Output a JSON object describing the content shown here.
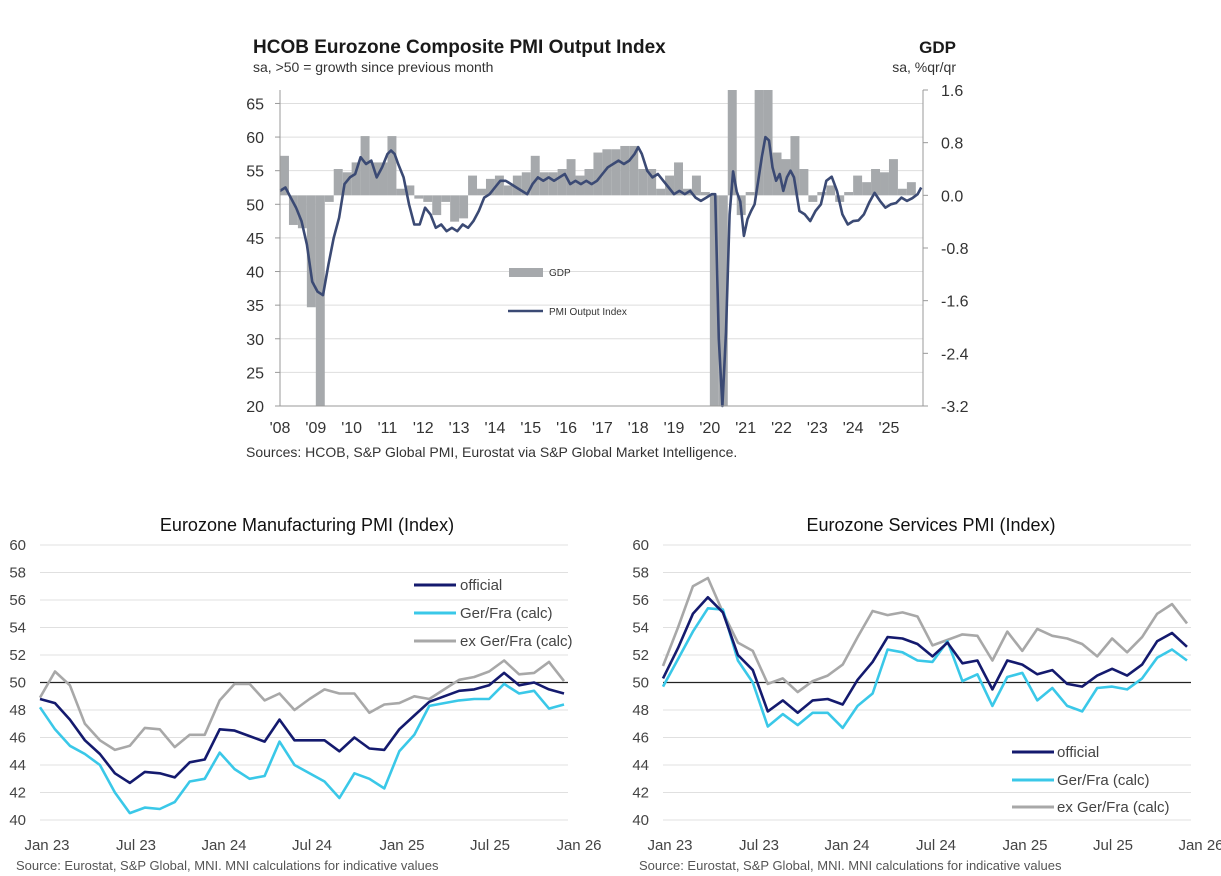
{
  "chart_data": [
    {
      "type": "bar+line",
      "title": "HCOB Eurozone Composite PMI Output Index",
      "subtitle": "sa, >50 = growth since previous month",
      "right_title": "GDP",
      "right_subtitle": "sa, %qr/qr",
      "source": "Sources: HCOB, S&P Global PMI, Eurostat via S&P Global Market Intelligence.",
      "legend": [
        "GDP",
        "PMI Output Index"
      ],
      "colors": {
        "gdp": "#a6a9ac",
        "pmi": "#3b4a74"
      },
      "x_ticks": [
        "'08",
        "'09",
        "'10",
        "'11",
        "'12",
        "'13",
        "'14",
        "'15",
        "'16",
        "'17",
        "'18",
        "'19",
        "'20",
        "'21",
        "'22",
        "'23",
        "'24",
        "'25"
      ],
      "left_axis": {
        "ticks": [
          65,
          60,
          55,
          50,
          45,
          40,
          35,
          30,
          25,
          20
        ],
        "ylim": [
          20,
          67
        ]
      },
      "right_axis": {
        "ticks": [
          "1.6",
          "0.8",
          "0.0",
          "-0.8",
          "-1.6",
          "-2.4",
          "-3.2"
        ],
        "ylim": [
          -3.2,
          1.6
        ]
      },
      "xlim": [
        2008,
        2025.95
      ],
      "gdp": {
        "x": [
          2008.125,
          2008.375,
          2008.625,
          2008.875,
          2009.125,
          2009.375,
          2009.625,
          2009.875,
          2010.125,
          2010.375,
          2010.625,
          2010.875,
          2011.125,
          2011.375,
          2011.625,
          2011.875,
          2012.125,
          2012.375,
          2012.625,
          2012.875,
          2013.125,
          2013.375,
          2013.625,
          2013.875,
          2014.125,
          2014.375,
          2014.625,
          2014.875,
          2015.125,
          2015.375,
          2015.625,
          2015.875,
          2016.125,
          2016.375,
          2016.625,
          2016.875,
          2017.125,
          2017.375,
          2017.625,
          2017.875,
          2018.125,
          2018.375,
          2018.625,
          2018.875,
          2019.125,
          2019.375,
          2019.625,
          2019.875,
          2020.125,
          2020.375,
          2020.625,
          2020.875,
          2021.125,
          2021.375,
          2021.625,
          2021.875,
          2022.125,
          2022.375,
          2022.625,
          2022.875,
          2023.125,
          2023.375,
          2023.625,
          2023.875,
          2024.125,
          2024.375,
          2024.625,
          2024.875,
          2025.125,
          2025.375,
          2025.625
        ],
        "values": [
          0.6,
          -0.45,
          -0.5,
          -1.7,
          -3.2,
          -0.1,
          0.4,
          0.35,
          0.5,
          0.9,
          0.5,
          0.5,
          0.9,
          0.1,
          0.15,
          -0.05,
          -0.1,
          -0.3,
          -0.1,
          -0.4,
          -0.35,
          0.3,
          0.1,
          0.25,
          0.3,
          0.15,
          0.3,
          0.35,
          0.6,
          0.35,
          0.35,
          0.4,
          0.55,
          0.3,
          0.4,
          0.65,
          0.7,
          0.7,
          0.75,
          0.75,
          0.4,
          0.4,
          0.1,
          0.3,
          0.5,
          0.1,
          0.3,
          0.05,
          -3.4,
          -11.7,
          12.5,
          -0.3,
          0.05,
          2.3,
          2.4,
          0.65,
          0.55,
          0.9,
          0.4,
          -0.1,
          0.05,
          0.15,
          -0.1,
          0.05,
          0.3,
          0.2,
          0.4,
          0.35,
          0.55,
          0.1,
          0.2
        ]
      },
      "pmi": {
        "x": [
          2008.0,
          2008.15,
          2008.3,
          2008.45,
          2008.6,
          2008.75,
          2008.9,
          2009.05,
          2009.2,
          2009.35,
          2009.5,
          2009.65,
          2009.8,
          2009.95,
          2010.1,
          2010.25,
          2010.4,
          2010.55,
          2010.7,
          2010.85,
          2011.0,
          2011.1,
          2011.2,
          2011.3,
          2011.45,
          2011.6,
          2011.75,
          2011.9,
          2012.05,
          2012.2,
          2012.35,
          2012.5,
          2012.65,
          2012.8,
          2012.95,
          2013.1,
          2013.25,
          2013.4,
          2013.55,
          2013.7,
          2013.85,
          2014.0,
          2014.15,
          2014.3,
          2014.45,
          2014.6,
          2014.75,
          2014.9,
          2015.05,
          2015.2,
          2015.35,
          2015.5,
          2015.65,
          2015.8,
          2015.95,
          2016.1,
          2016.25,
          2016.4,
          2016.55,
          2016.7,
          2016.85,
          2017.0,
          2017.15,
          2017.3,
          2017.45,
          2017.6,
          2017.75,
          2017.9,
          2018.0,
          2018.1,
          2018.25,
          2018.4,
          2018.55,
          2018.7,
          2018.85,
          2019.0,
          2019.15,
          2019.3,
          2019.45,
          2019.6,
          2019.75,
          2019.9,
          2020.05,
          2020.15,
          2020.25,
          2020.35,
          2020.45,
          2020.55,
          2020.65,
          2020.75,
          2020.85,
          2020.95,
          2021.05,
          2021.15,
          2021.25,
          2021.35,
          2021.45,
          2021.55,
          2021.65,
          2021.75,
          2021.85,
          2021.95,
          2022.05,
          2022.15,
          2022.25,
          2022.35,
          2022.5,
          2022.65,
          2022.8,
          2022.95,
          2023.1,
          2023.25,
          2023.4,
          2023.55,
          2023.7,
          2023.85,
          2024.0,
          2024.15,
          2024.3,
          2024.45,
          2024.6,
          2024.75,
          2024.9,
          2025.05,
          2025.2,
          2025.35,
          2025.5,
          2025.65,
          2025.8,
          2025.9
        ],
        "values": [
          52.0,
          52.5,
          51.0,
          49.5,
          47.5,
          44.0,
          38.5,
          37.0,
          36.5,
          41.0,
          45.0,
          48.0,
          53.0,
          54.0,
          54.5,
          57.0,
          56.0,
          56.5,
          54.0,
          55.5,
          57.5,
          58.0,
          57.5,
          56.0,
          54.0,
          50.0,
          47.0,
          47.0,
          49.5,
          48.5,
          46.5,
          47.0,
          46.0,
          46.5,
          46.0,
          47.0,
          46.5,
          47.5,
          49.0,
          51.0,
          51.5,
          52.5,
          53.5,
          53.5,
          53.0,
          52.5,
          52.0,
          51.5,
          53.0,
          54.0,
          53.5,
          54.0,
          53.5,
          54.0,
          54.5,
          53.0,
          53.5,
          53.0,
          53.5,
          53.0,
          53.5,
          54.5,
          55.5,
          56.0,
          56.5,
          56.0,
          56.5,
          57.5,
          58.5,
          57.5,
          55.0,
          54.0,
          54.5,
          53.5,
          52.5,
          51.5,
          52.0,
          51.5,
          52.0,
          51.0,
          50.5,
          51.0,
          51.5,
          51.5,
          30.0,
          13.6,
          31.0,
          48.5,
          54.9,
          51.9,
          50.4,
          45.3,
          47.8,
          49.0,
          50.0,
          53.5,
          57.0,
          60.0,
          59.5,
          55.5,
          53.5,
          54.5,
          52.0,
          54.0,
          55.0,
          54.0,
          49.0,
          48.5,
          47.5,
          49.0,
          50.0,
          53.5,
          54.1,
          52.0,
          48.5,
          47.0,
          47.5,
          47.6,
          48.5,
          50.3,
          51.7,
          50.5,
          49.5,
          50.0,
          50.2,
          51.0,
          50.5,
          50.9,
          51.5,
          52.5
        ]
      }
    },
    {
      "type": "line",
      "title": "Eurozone Manufacturing PMI (Index)",
      "source": "Source: Eurostat, S&P Global, MNI.  MNI calculations for indicative values",
      "x_ticks": [
        "Jan 23",
        "Jul 23",
        "Jan 24",
        "Jul 24",
        "Jan 25",
        "Jul 25",
        "Jan 26"
      ],
      "y_ticks": [
        60,
        58,
        56,
        54,
        52,
        50,
        48,
        46,
        44,
        42,
        40
      ],
      "ylim": [
        40,
        60
      ],
      "reference_line": 50,
      "series": [
        {
          "name": "official",
          "color": "#141a6e",
          "values": [
            48.8,
            48.5,
            47.3,
            45.8,
            44.8,
            43.4,
            42.7,
            43.5,
            43.4,
            43.1,
            44.2,
            44.4,
            46.6,
            46.5,
            46.1,
            45.7,
            47.3,
            45.8,
            45.8,
            45.8,
            45.0,
            46.0,
            45.2,
            45.1,
            46.6,
            47.6,
            48.6,
            49.0,
            49.4,
            49.5,
            49.8,
            50.7,
            49.8,
            50.0,
            49.5,
            49.2
          ]
        },
        {
          "name": "Ger/Fra (calc)",
          "color": "#3ac8e8",
          "values": [
            48.2,
            46.6,
            45.4,
            44.8,
            44.0,
            42.0,
            40.5,
            40.9,
            40.8,
            41.3,
            42.8,
            43.0,
            44.9,
            43.7,
            43.0,
            43.2,
            45.7,
            44.0,
            43.4,
            42.8,
            41.6,
            43.4,
            43.0,
            42.3,
            45.0,
            46.2,
            48.3,
            48.5,
            48.7,
            48.8,
            48.8,
            49.9,
            49.2,
            49.4,
            48.1,
            48.4
          ]
        },
        {
          "name": "ex Ger/Fra (calc)",
          "color": "#a8a8a8",
          "values": [
            48.9,
            50.8,
            49.8,
            47.0,
            45.8,
            45.1,
            45.4,
            46.7,
            46.6,
            45.3,
            46.2,
            46.2,
            48.7,
            49.9,
            49.9,
            48.7,
            49.2,
            48.0,
            48.8,
            49.5,
            49.2,
            49.2,
            47.8,
            48.4,
            48.5,
            49.0,
            48.8,
            49.5,
            50.2,
            50.4,
            50.8,
            51.6,
            50.6,
            50.7,
            51.5,
            50.1
          ]
        }
      ]
    },
    {
      "type": "line",
      "title": "Eurozone Services PMI (Index)",
      "source": "Source: Eurostat, S&P Global, MNI.  MNI calculations for indicative values",
      "x_ticks": [
        "Jan 23",
        "Jul 23",
        "Jan 24",
        "Jul 24",
        "Jan 25",
        "Jul 25",
        "Jan 26"
      ],
      "y_ticks": [
        60,
        58,
        56,
        54,
        52,
        50,
        48,
        46,
        44,
        42,
        40
      ],
      "ylim": [
        40,
        60
      ],
      "reference_line": 50,
      "series": [
        {
          "name": "official",
          "color": "#141a6e",
          "values": [
            50.3,
            52.5,
            55.0,
            56.2,
            55.1,
            52.0,
            50.9,
            47.9,
            48.7,
            47.8,
            48.7,
            48.8,
            48.4,
            50.2,
            51.5,
            53.3,
            53.2,
            52.8,
            51.9,
            52.9,
            51.4,
            51.6,
            49.5,
            51.6,
            51.3,
            50.6,
            50.9,
            49.9,
            49.7,
            50.5,
            51.0,
            50.5,
            51.3,
            53.0,
            53.6,
            52.6
          ]
        },
        {
          "name": "Ger/Fra (calc)",
          "color": "#3ac8e8",
          "values": [
            49.7,
            51.7,
            53.7,
            55.4,
            55.3,
            51.6,
            50.0,
            46.8,
            47.7,
            46.9,
            47.8,
            47.8,
            46.7,
            48.3,
            49.2,
            52.4,
            52.2,
            51.6,
            51.5,
            53.0,
            50.1,
            50.6,
            48.3,
            50.4,
            50.7,
            48.7,
            49.6,
            48.3,
            47.9,
            49.6,
            49.7,
            49.5,
            50.3,
            51.8,
            52.4,
            51.6
          ]
        },
        {
          "name": "ex Ger/Fra (calc)",
          "color": "#a8a8a8",
          "values": [
            51.2,
            54.0,
            57.0,
            57.6,
            55.1,
            52.9,
            52.3,
            49.9,
            50.3,
            49.3,
            50.1,
            50.5,
            51.3,
            53.3,
            55.2,
            54.9,
            55.1,
            54.8,
            52.7,
            53.1,
            53.5,
            53.4,
            51.6,
            53.7,
            52.3,
            53.9,
            53.4,
            53.2,
            52.8,
            51.9,
            53.2,
            52.2,
            53.3,
            55.0,
            55.7,
            54.3
          ]
        }
      ]
    }
  ]
}
